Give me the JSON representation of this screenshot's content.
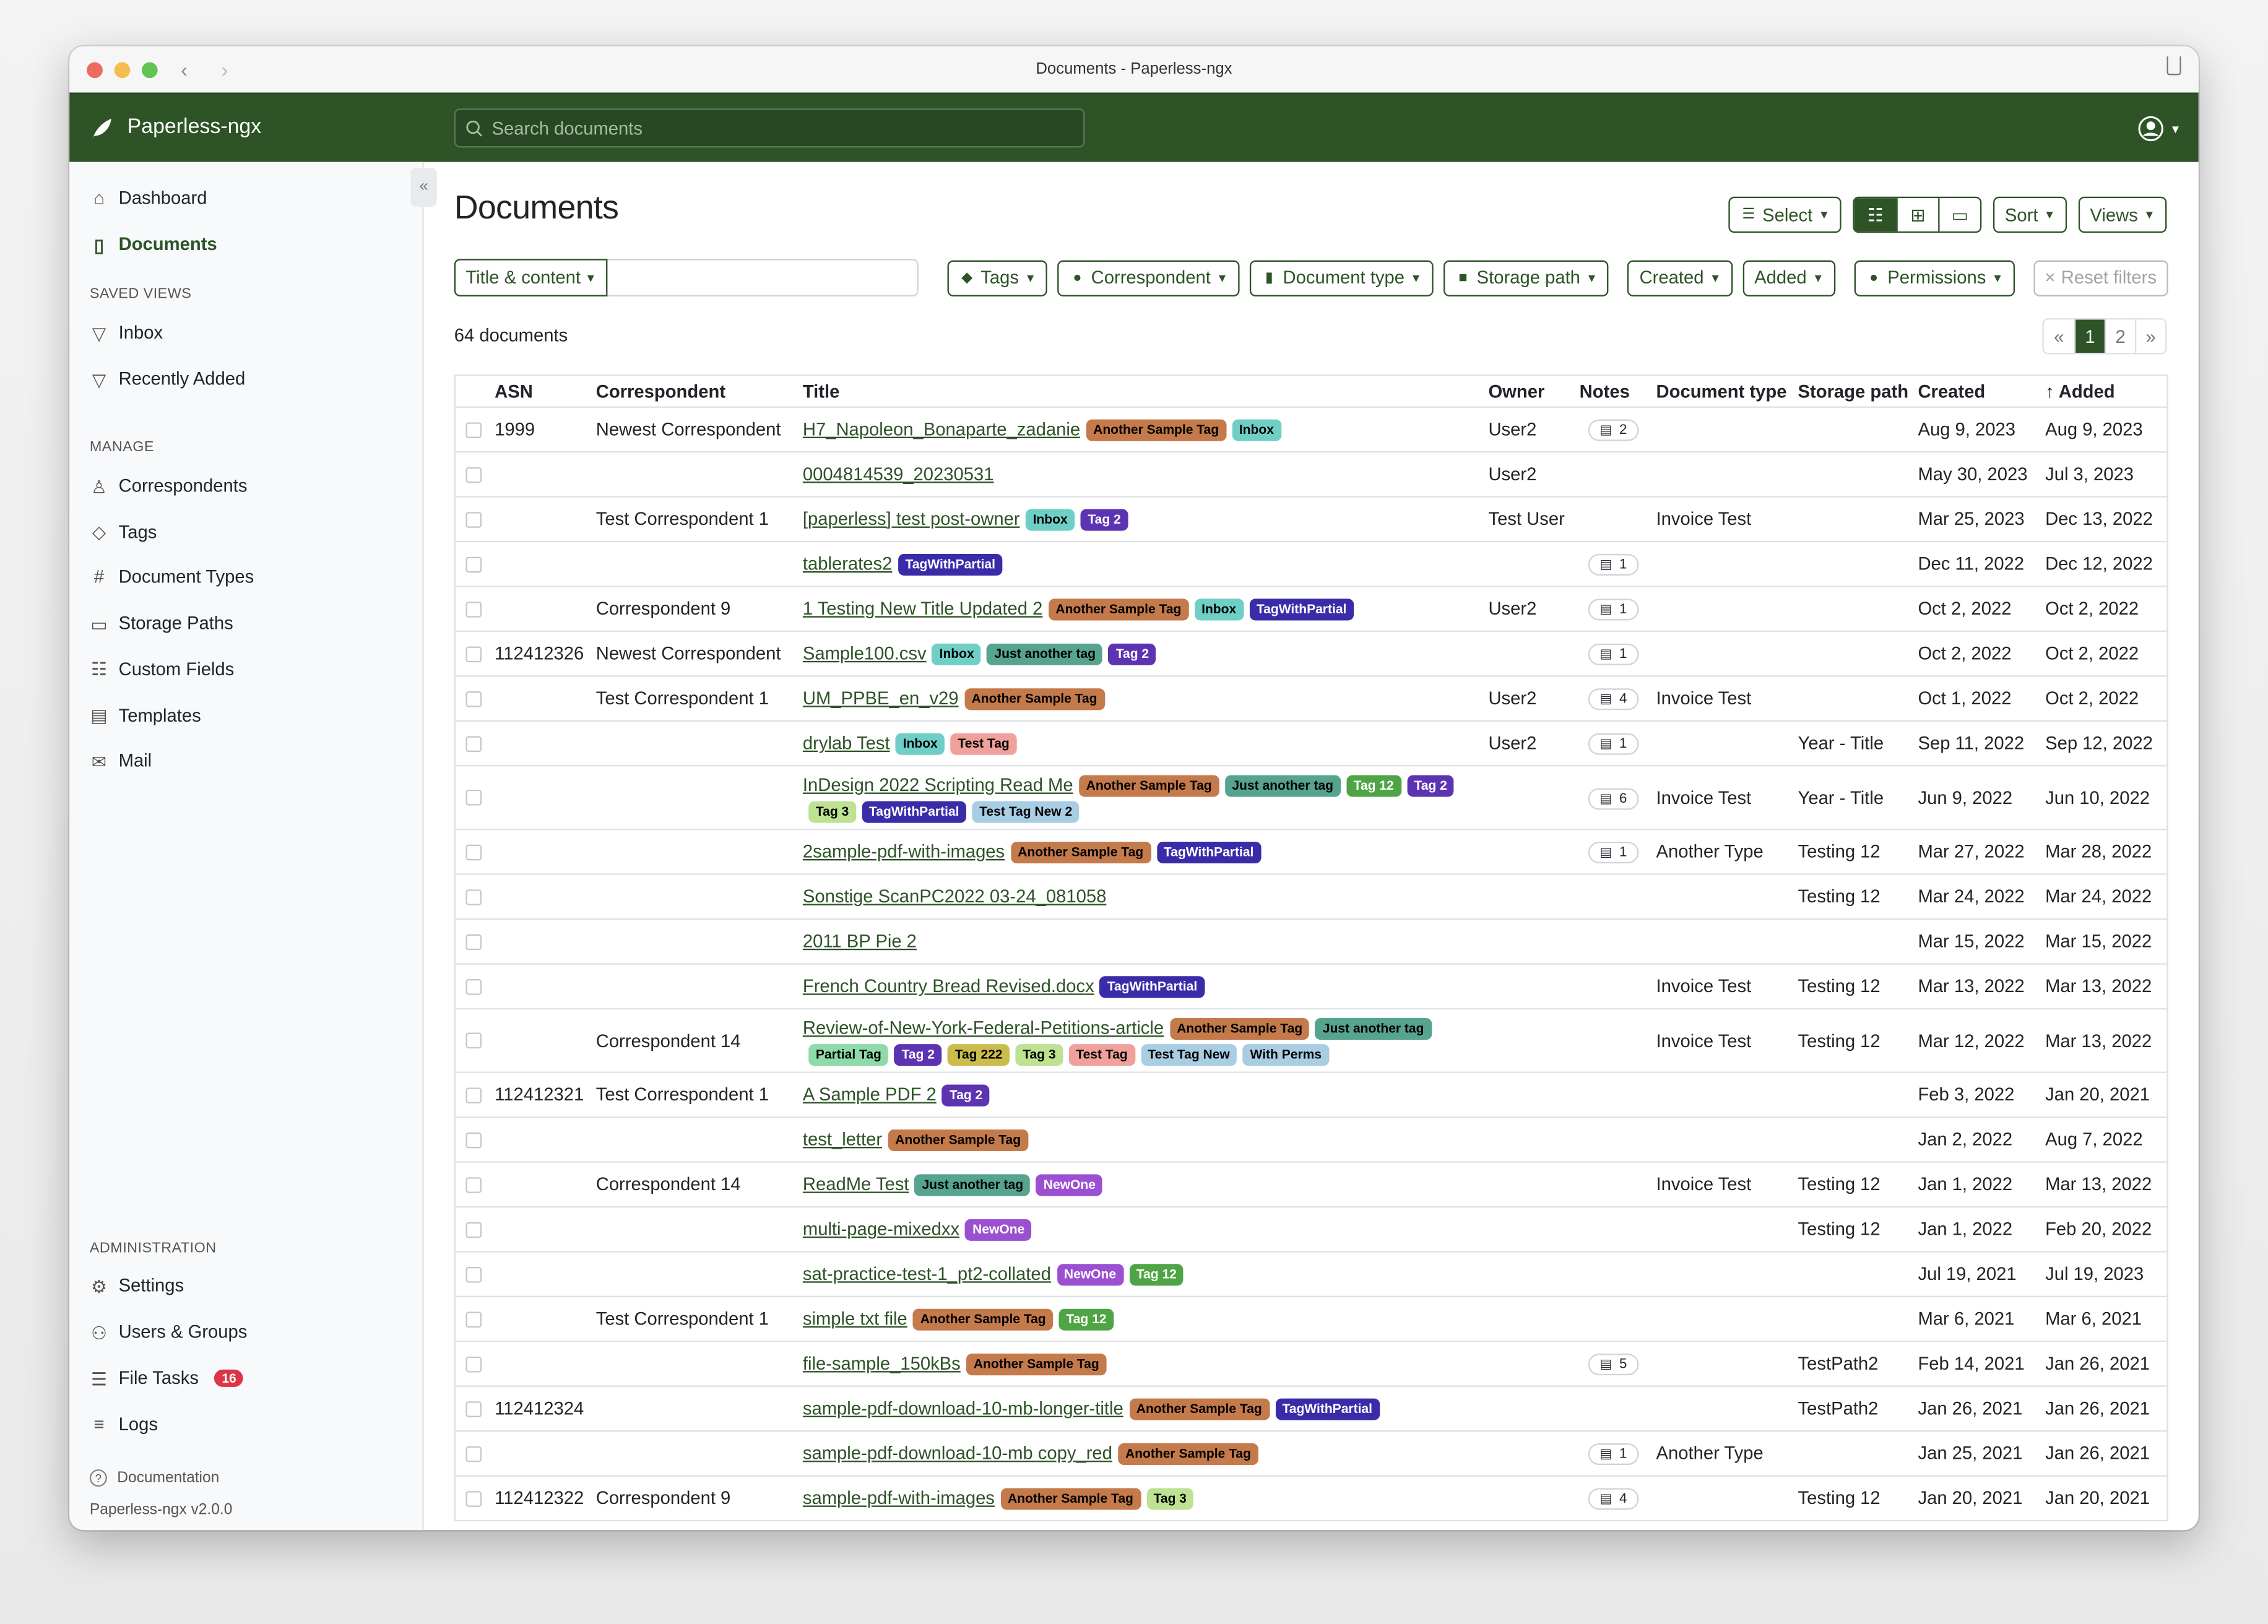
{
  "window": {
    "title": "Documents - Paperless-ngx"
  },
  "nav": {
    "brand": "Paperless-ngx",
    "search_placeholder": "Search documents"
  },
  "sidebar": {
    "main": [
      {
        "label": "Dashboard",
        "icon": "house-icon"
      },
      {
        "label": "Documents",
        "icon": "file-icon",
        "active": true
      }
    ],
    "saved_views_heading": "SAVED VIEWS",
    "saved_views": [
      {
        "label": "Inbox",
        "icon": "funnel-icon"
      },
      {
        "label": "Recently Added",
        "icon": "funnel-icon"
      }
    ],
    "manage_heading": "MANAGE",
    "manage": [
      {
        "label": "Correspondents",
        "icon": "person-icon"
      },
      {
        "label": "Tags",
        "icon": "tags-icon"
      },
      {
        "label": "Document Types",
        "icon": "hash-icon"
      },
      {
        "label": "Storage Paths",
        "icon": "folder-icon"
      },
      {
        "label": "Custom Fields",
        "icon": "ui-radios-icon"
      },
      {
        "label": "Templates",
        "icon": "file-text-icon"
      },
      {
        "label": "Mail",
        "icon": "envelope-icon"
      }
    ],
    "admin_heading": "ADMINISTRATION",
    "admin": [
      {
        "label": "Settings",
        "icon": "gear-icon"
      },
      {
        "label": "Users & Groups",
        "icon": "people-icon"
      },
      {
        "label": "File Tasks",
        "icon": "list-task-icon",
        "badge": "16"
      },
      {
        "label": "Logs",
        "icon": "list-icon"
      }
    ],
    "documentation": "Documentation",
    "version": "Paperless-ngx v2.0.0"
  },
  "page": {
    "title": "Documents",
    "select": "Select",
    "sort": "Sort",
    "views": "Views",
    "title_content": "Title & content",
    "filters": {
      "tags": "Tags",
      "correspondent": "Correspondent",
      "document_type": "Document type",
      "storage_path": "Storage path",
      "created": "Created",
      "added": "Added",
      "permissions": "Permissions",
      "reset": "Reset filters"
    },
    "count": "64 documents",
    "pager": [
      "«",
      "1",
      "2",
      "»"
    ],
    "current_page": "1"
  },
  "colors": {
    "brand": "#2d5327",
    "badge": "#dc3545"
  },
  "tag_colors": {
    "Another Sample Tag": [
      "#c47a4b",
      "#000"
    ],
    "Inbox": [
      "#6fcfc6",
      "#000"
    ],
    "Tag 2": [
      "#5c34b2",
      "#fff"
    ],
    "TagWithPartial": [
      "#3a2ca8",
      "#fff"
    ],
    "Just another tag": [
      "#56a38e",
      "#000"
    ],
    "Tag 12": [
      "#4fa545",
      "#fff"
    ],
    "Tag 3": [
      "#bce292",
      "#000"
    ],
    "Test Tag New 2": [
      "#a9cde3",
      "#000"
    ],
    "Test Tag": [
      "#f0a19b",
      "#000"
    ],
    "Partial Tag": [
      "#8fdaa9",
      "#000"
    ],
    "Tag 222": [
      "#cbbd4d",
      "#000"
    ],
    "Test Tag New": [
      "#a9cde3",
      "#000"
    ],
    "With Perms": [
      "#a9cde3",
      "#000"
    ],
    "NewOne": [
      "#9b50d2",
      "#fff"
    ]
  },
  "table": {
    "headers": [
      "",
      "ASN",
      "Correspondent",
      "Title",
      "Owner",
      "Notes",
      "Document type",
      "Storage path",
      "Created",
      "Added"
    ],
    "sort_column": "Added",
    "rows": [
      {
        "asn": "1999",
        "corr": "Newest Correspondent",
        "title": "H7_Napoleon_Bonaparte_zadanie",
        "tags": [
          "Another Sample Tag",
          "Inbox"
        ],
        "owner": "User2",
        "notes": "2",
        "type": "",
        "path": "",
        "created": "Aug 9, 2023",
        "added": "Aug 9, 2023"
      },
      {
        "asn": "",
        "corr": "",
        "title": "0004814539_20230531",
        "tags": [],
        "owner": "User2",
        "notes": "",
        "type": "",
        "path": "",
        "created": "May 30, 2023",
        "added": "Jul 3, 2023"
      },
      {
        "asn": "",
        "corr": "Test Correspondent 1",
        "title": "[paperless] test post-owner",
        "tags": [
          "Inbox",
          "Tag 2"
        ],
        "owner": "Test User",
        "notes": "",
        "type": "Invoice Test",
        "path": "",
        "created": "Mar 25, 2023",
        "added": "Dec 13, 2022"
      },
      {
        "asn": "",
        "corr": "",
        "title": "tablerates2",
        "tags": [
          "TagWithPartial"
        ],
        "owner": "",
        "notes": "1",
        "type": "",
        "path": "",
        "created": "Dec 11, 2022",
        "added": "Dec 12, 2022"
      },
      {
        "asn": "",
        "corr": "Correspondent 9",
        "title": "1 Testing New Title Updated 2",
        "tags": [
          "Another Sample Tag",
          "Inbox",
          "TagWithPartial"
        ],
        "owner": "User2",
        "notes": "1",
        "type": "",
        "path": "",
        "created": "Oct 2, 2022",
        "added": "Oct 2, 2022"
      },
      {
        "asn": "112412326",
        "corr": "Newest Correspondent",
        "title": "Sample100.csv",
        "tags": [
          "Inbox",
          "Just another tag",
          "Tag 2"
        ],
        "owner": "",
        "notes": "1",
        "type": "",
        "path": "",
        "created": "Oct 2, 2022",
        "added": "Oct 2, 2022"
      },
      {
        "asn": "",
        "corr": "Test Correspondent 1",
        "title": "UM_PPBE_en_v29",
        "tags": [
          "Another Sample Tag"
        ],
        "owner": "User2",
        "notes": "4",
        "type": "Invoice Test",
        "path": "",
        "created": "Oct 1, 2022",
        "added": "Oct 2, 2022"
      },
      {
        "asn": "",
        "corr": "",
        "title": "drylab Test",
        "tags": [
          "Inbox",
          "Test Tag"
        ],
        "owner": "User2",
        "notes": "1",
        "type": "",
        "path": "Year - Title",
        "created": "Sep 11, 2022",
        "added": "Sep 12, 2022"
      },
      {
        "asn": "",
        "corr": "",
        "title": "InDesign 2022 Scripting Read Me",
        "tags": [
          "Another Sample Tag",
          "Just another tag",
          "Tag 12",
          "Tag 2",
          "Tag 3",
          "TagWithPartial",
          "Test Tag New 2"
        ],
        "owner": "",
        "notes": "6",
        "type": "Invoice Test",
        "path": "Year - Title",
        "created": "Jun 9, 2022",
        "added": "Jun 10, 2022"
      },
      {
        "asn": "",
        "corr": "",
        "title": "2sample-pdf-with-images",
        "tags": [
          "Another Sample Tag",
          "TagWithPartial"
        ],
        "owner": "",
        "notes": "1",
        "type": "Another Type",
        "path": "Testing 12",
        "created": "Mar 27, 2022",
        "added": "Mar 28, 2022"
      },
      {
        "asn": "",
        "corr": "",
        "title": "Sonstige ScanPC2022 03-24_081058",
        "tags": [],
        "owner": "",
        "notes": "",
        "type": "",
        "path": "Testing 12",
        "created": "Mar 24, 2022",
        "added": "Mar 24, 2022"
      },
      {
        "asn": "",
        "corr": "",
        "title": "2011 BP Pie 2",
        "tags": [],
        "owner": "",
        "notes": "",
        "type": "",
        "path": "",
        "created": "Mar 15, 2022",
        "added": "Mar 15, 2022"
      },
      {
        "asn": "",
        "corr": "",
        "title": "French Country Bread Revised.docx",
        "tags": [
          "TagWithPartial"
        ],
        "owner": "",
        "notes": "",
        "type": "Invoice Test",
        "path": "Testing 12",
        "created": "Mar 13, 2022",
        "added": "Mar 13, 2022"
      },
      {
        "asn": "",
        "corr": "Correspondent 14",
        "title": "Review-of-New-York-Federal-Petitions-article",
        "tags": [
          "Another Sample Tag",
          "Just another tag",
          "Partial Tag",
          "Tag 2",
          "Tag 222",
          "Tag 3",
          "Test Tag",
          "Test Tag New",
          "With Perms"
        ],
        "owner": "",
        "notes": "",
        "type": "Invoice Test",
        "path": "Testing 12",
        "created": "Mar 12, 2022",
        "added": "Mar 13, 2022"
      },
      {
        "asn": "112412321",
        "corr": "Test Correspondent 1",
        "title": "A Sample PDF 2",
        "tags": [
          "Tag 2"
        ],
        "owner": "",
        "notes": "",
        "type": "",
        "path": "",
        "created": "Feb 3, 2022",
        "added": "Jan 20, 2021"
      },
      {
        "asn": "",
        "corr": "",
        "title": "test_letter",
        "tags": [
          "Another Sample Tag"
        ],
        "owner": "",
        "notes": "",
        "type": "",
        "path": "",
        "created": "Jan 2, 2022",
        "added": "Aug 7, 2022"
      },
      {
        "asn": "",
        "corr": "Correspondent 14",
        "title": "ReadMe Test",
        "tags": [
          "Just another tag",
          "NewOne"
        ],
        "owner": "",
        "notes": "",
        "type": "Invoice Test",
        "path": "Testing 12",
        "created": "Jan 1, 2022",
        "added": "Mar 13, 2022"
      },
      {
        "asn": "",
        "corr": "",
        "title": "multi-page-mixedxx",
        "tags": [
          "NewOne"
        ],
        "owner": "",
        "notes": "",
        "type": "",
        "path": "Testing 12",
        "created": "Jan 1, 2022",
        "added": "Feb 20, 2022"
      },
      {
        "asn": "",
        "corr": "",
        "title": "sat-practice-test-1_pt2-collated",
        "tags": [
          "NewOne",
          "Tag 12"
        ],
        "owner": "",
        "notes": "",
        "type": "",
        "path": "",
        "created": "Jul 19, 2021",
        "added": "Jul 19, 2023"
      },
      {
        "asn": "",
        "corr": "Test Correspondent 1",
        "title": "simple txt file",
        "tags": [
          "Another Sample Tag",
          "Tag 12"
        ],
        "owner": "",
        "notes": "",
        "type": "",
        "path": "",
        "created": "Mar 6, 2021",
        "added": "Mar 6, 2021"
      },
      {
        "asn": "",
        "corr": "",
        "title": "file-sample_150kBs",
        "tags": [
          "Another Sample Tag"
        ],
        "owner": "",
        "notes": "5",
        "type": "",
        "path": "TestPath2",
        "created": "Feb 14, 2021",
        "added": "Jan 26, 2021"
      },
      {
        "asn": "112412324",
        "corr": "",
        "title": "sample-pdf-download-10-mb-longer-title",
        "tags": [
          "Another Sample Tag",
          "TagWithPartial"
        ],
        "owner": "",
        "notes": "",
        "type": "",
        "path": "TestPath2",
        "created": "Jan 26, 2021",
        "added": "Jan 26, 2021"
      },
      {
        "asn": "",
        "corr": "",
        "title": "sample-pdf-download-10-mb copy_red",
        "tags": [
          "Another Sample Tag"
        ],
        "owner": "",
        "notes": "1",
        "type": "Another Type",
        "path": "",
        "created": "Jan 25, 2021",
        "added": "Jan 26, 2021"
      },
      {
        "asn": "112412322",
        "corr": "Correspondent 9",
        "title": "sample-pdf-with-images",
        "tags": [
          "Another Sample Tag",
          "Tag 3"
        ],
        "owner": "",
        "notes": "4",
        "type": "",
        "path": "Testing 12",
        "created": "Jan 20, 2021",
        "added": "Jan 20, 2021"
      }
    ]
  }
}
